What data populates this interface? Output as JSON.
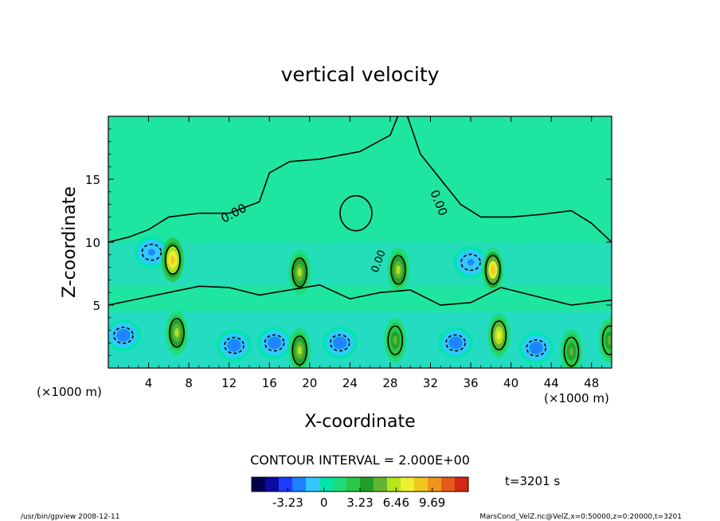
{
  "chart_data": {
    "type": "heatmap",
    "title": "vertical velocity",
    "xlabel": "X-coordinate",
    "ylabel": "Z-coordinate",
    "x_unit_left": "(×1000 m)",
    "x_unit_right": "(×1000 m)",
    "xlim": [
      0,
      50
    ],
    "ylim": [
      0,
      20
    ],
    "x_ticks": [
      4,
      8,
      12,
      16,
      20,
      24,
      28,
      32,
      36,
      40,
      44,
      48
    ],
    "x_tick_labels": [
      "4",
      "8",
      "12",
      "16",
      "20",
      "24",
      "28",
      "32",
      "36",
      "40",
      "44",
      "48"
    ],
    "y_ticks": [
      5,
      10,
      15
    ],
    "y_tick_labels": [
      "5",
      "10",
      "15"
    ],
    "contour_interval_label": "CONTOUR INTERVAL = 2.000E+00",
    "time_label": "t=3201 s",
    "colorbar": {
      "ticks": [
        -3.23,
        0,
        3.23,
        6.46,
        9.69
      ],
      "tick_labels": [
        "-3.23",
        "0",
        "3.23",
        "6.46",
        "9.69"
      ],
      "colors": [
        "#000050",
        "#0a0aa0",
        "#1e3cff",
        "#1e82ff",
        "#32c8ff",
        "#00e6aa",
        "#1edc78",
        "#28c846",
        "#1ea028",
        "#64b432",
        "#b4e61e",
        "#f0f032",
        "#f0c81e",
        "#f0961e",
        "#e65a1e",
        "#d22814"
      ]
    },
    "zero_contour_labels": [
      "0.00",
      "0.00",
      "0.00"
    ],
    "updrafts": [
      {
        "x": 6.4,
        "z": 8.6,
        "peak": 9.69
      },
      {
        "x": 19.0,
        "z": 7.6,
        "peak": 6.0
      },
      {
        "x": 28.8,
        "z": 7.8,
        "peak": 6.5
      },
      {
        "x": 38.2,
        "z": 7.8,
        "peak": 9.0
      },
      {
        "x": 38.8,
        "z": 2.6,
        "peak": 8.0
      },
      {
        "x": 6.8,
        "z": 2.8,
        "peak": 6.0
      },
      {
        "x": 19.0,
        "z": 1.4,
        "peak": 6.0
      },
      {
        "x": 28.5,
        "z": 2.2,
        "peak": 5.0
      },
      {
        "x": 46.0,
        "z": 1.3,
        "peak": 5.0
      },
      {
        "x": 49.8,
        "z": 2.2,
        "peak": 5.0
      }
    ],
    "downdrafts": [
      {
        "x": 1.5,
        "z": 2.6,
        "peak": -3.2
      },
      {
        "x": 12.5,
        "z": 1.8,
        "peak": -3.0
      },
      {
        "x": 16.5,
        "z": 2.0,
        "peak": -3.0
      },
      {
        "x": 23.0,
        "z": 2.0,
        "peak": -2.8
      },
      {
        "x": 34.5,
        "z": 2.0,
        "peak": -3.0
      },
      {
        "x": 42.5,
        "z": 1.6,
        "peak": -3.0
      },
      {
        "x": 4.3,
        "z": 9.2,
        "peak": -2.2
      },
      {
        "x": 36.0,
        "z": 8.4,
        "peak": -2.2
      }
    ],
    "footer_left": "/usr/bin/gpview   2008-12-11",
    "footer_right": "MarsCond_VelZ.nc@VelZ,x=0:50000,z=0:20000,t=3201"
  }
}
